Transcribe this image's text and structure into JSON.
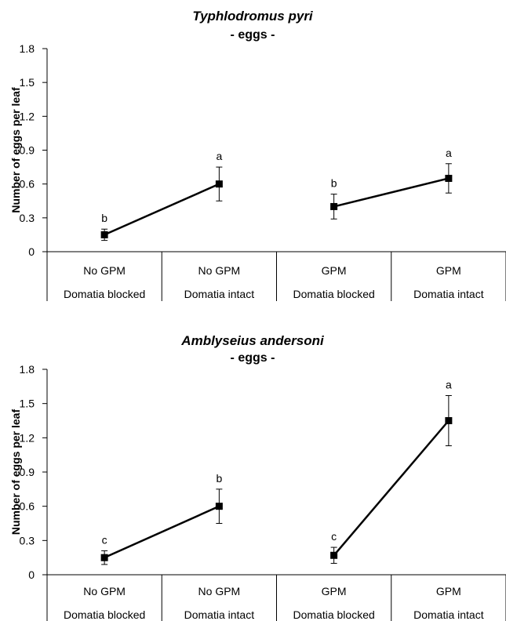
{
  "chart_data": [
    {
      "type": "line",
      "title": "Typhlodromus pyri",
      "subtitle": "- eggs -",
      "ylabel": "Number of eggs per leaf",
      "xlabel": "",
      "ylim": [
        0,
        1.8
      ],
      "yticks": [
        "0",
        "0.3",
        "0.6",
        "0.9",
        "1.2",
        "1.5",
        "1.8"
      ],
      "grid": false,
      "categories": [
        {
          "line1": "No GPM",
          "line2": "Domatia blocked"
        },
        {
          "line1": "No GPM",
          "line2": "Domatia intact"
        },
        {
          "line1": "GPM",
          "line2": "Domatia blocked"
        },
        {
          "line1": "GPM",
          "line2": "Domatia intact"
        }
      ],
      "segments": [
        [
          0,
          1
        ],
        [
          2,
          3
        ]
      ],
      "values": [
        0.15,
        0.6,
        0.4,
        0.65
      ],
      "errors": [
        0.05,
        0.15,
        0.11,
        0.13
      ],
      "letters": [
        "b",
        "a",
        "b",
        "a"
      ]
    },
    {
      "type": "line",
      "title": "Amblyseius andersoni",
      "subtitle": "- eggs -",
      "ylabel": "Number of eggs per leaf",
      "xlabel": "",
      "ylim": [
        0,
        1.8
      ],
      "yticks": [
        "0",
        "0.3",
        "0.6",
        "0.9",
        "1.2",
        "1.5",
        "1.8"
      ],
      "grid": false,
      "categories": [
        {
          "line1": "No GPM",
          "line2": "Domatia blocked"
        },
        {
          "line1": "No GPM",
          "line2": "Domatia intact"
        },
        {
          "line1": "GPM",
          "line2": "Domatia blocked"
        },
        {
          "line1": "GPM",
          "line2": "Domatia intact"
        }
      ],
      "segments": [
        [
          0,
          1
        ],
        [
          2,
          3
        ]
      ],
      "values": [
        0.15,
        0.6,
        0.17,
        1.35
      ],
      "errors": [
        0.06,
        0.15,
        0.07,
        0.22
      ],
      "letters": [
        "c",
        "b",
        "c",
        "a"
      ]
    }
  ]
}
